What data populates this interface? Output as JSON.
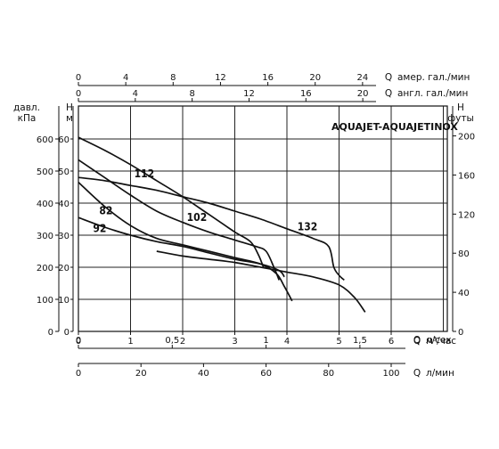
{
  "chart_data": {
    "type": "line",
    "title": "AQUAJET-AQUAJETINOX",
    "grid": true,
    "left_axes": [
      {
        "unit_line1": "давл.",
        "unit_line2": "кПа",
        "ticks": [
          "600",
          "500",
          "400",
          "300",
          "200",
          "100",
          "0"
        ],
        "values": [
          600,
          500,
          400,
          300,
          200,
          100,
          0
        ]
      },
      {
        "unit_line1": "H",
        "unit_line2": "м",
        "ticks": [
          "60",
          "50",
          "40",
          "30",
          "20",
          "10",
          "0"
        ],
        "values": [
          60,
          50,
          40,
          30,
          20,
          10,
          0
        ]
      }
    ],
    "right_axis": {
      "unit_line1": "H",
      "unit_line2": "футы",
      "ticks": [
        "200",
        "160",
        "120",
        "80",
        "40",
        "0"
      ],
      "values": [
        200,
        160,
        120,
        80,
        40,
        0
      ]
    },
    "top_axes": [
      {
        "prefix": "Q",
        "unit": "амер. гал./мин",
        "ticks": [
          "0",
          "4",
          "8",
          "12",
          "16",
          "20",
          "24"
        ],
        "values": [
          0,
          4,
          8,
          12,
          16,
          20,
          24
        ]
      },
      {
        "prefix": "Q",
        "unit": "англ. гал./мин",
        "ticks": [
          "0",
          "4",
          "8",
          "12",
          "16",
          "20"
        ],
        "values": [
          0,
          4,
          8,
          12,
          16,
          20
        ]
      }
    ],
    "bottom_axes": [
      {
        "prefix": "Q",
        "unit": "м³/час",
        "ticks": [
          "0",
          "1",
          "2",
          "3",
          "4",
          "5",
          "6"
        ],
        "values": [
          0,
          1,
          2,
          3,
          4,
          5,
          6
        ]
      },
      {
        "prefix": "Q",
        "unit": "л/сек",
        "ticks": [
          "0",
          "0,5",
          "1",
          "1,5"
        ],
        "values": [
          0,
          0.5,
          1,
          1.5
        ]
      },
      {
        "prefix": "Q",
        "unit": "л/мин",
        "ticks": [
          "0",
          "20",
          "40",
          "60",
          "80",
          "100"
        ],
        "values": [
          0,
          20,
          40,
          60,
          80,
          100
        ]
      }
    ],
    "xlim": [
      0,
      7
    ],
    "ylim": [
      0,
      64
    ],
    "series": [
      {
        "name": "112",
        "x": [
          0,
          0.5,
          1,
          1.5,
          2,
          2.5,
          3,
          3.3,
          3.45,
          3.55
        ],
        "y": [
          60.5,
          56.5,
          52,
          47,
          42,
          36.5,
          31,
          28,
          24,
          20
        ]
      },
      {
        "name": "102",
        "x": [
          0,
          0.5,
          1,
          1.5,
          2,
          2.5,
          3,
          3.4,
          3.6,
          3.75,
          3.85
        ],
        "y": [
          53.5,
          48,
          42.5,
          37.5,
          34,
          31,
          28.5,
          26.5,
          25,
          20,
          16
        ]
      },
      {
        "name": "82",
        "x": [
          0,
          0.5,
          1,
          1.5,
          2,
          2.5,
          3,
          3.5,
          3.8,
          3.95,
          4.1
        ],
        "y": [
          46.5,
          39,
          33,
          29,
          27,
          25,
          23,
          21,
          18,
          14,
          9.5
        ]
      },
      {
        "name": "92",
        "x": [
          0,
          0.5,
          1,
          1.5,
          2,
          2.5,
          3,
          3.5,
          3.85,
          3.95
        ],
        "y": [
          35.5,
          32.5,
          30,
          28,
          26.5,
          24.5,
          22.5,
          21,
          19,
          17
        ]
      },
      {
        "name": "132",
        "x": [
          0,
          0.5,
          1,
          1.5,
          2,
          2.5,
          3,
          3.5,
          4,
          4.5,
          4.8,
          4.9,
          5.0,
          5.1
        ],
        "y": [
          48,
          47,
          45.5,
          44,
          42,
          40,
          37.5,
          35,
          32,
          29,
          26.5,
          20,
          17.5,
          16
        ]
      },
      {
        "name": "",
        "x": [
          1.5,
          2,
          2.5,
          3,
          3.5,
          4,
          4.5,
          5,
          5.3,
          5.5
        ],
        "y": [
          25,
          23.5,
          22.5,
          21.5,
          20,
          18.5,
          17,
          14.5,
          10.5,
          6
        ]
      }
    ]
  }
}
